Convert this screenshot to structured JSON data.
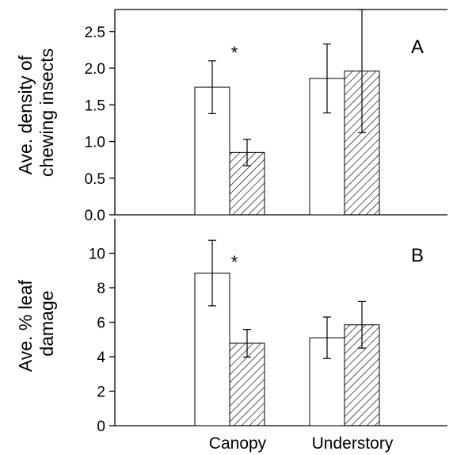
{
  "chart_data": [
    {
      "type": "bar",
      "panel_label": "A",
      "ylabel_lines": [
        "Ave. density of",
        "chewing insects"
      ],
      "xlabel": "",
      "categories": [
        "Canopy",
        "Understory"
      ],
      "series": [
        {
          "values": [
            1.74,
            1.86
          ],
          "errors": [
            0.36,
            0.47
          ],
          "fill": "open"
        },
        {
          "values": [
            0.85,
            1.96
          ],
          "errors": [
            0.18,
            0.84
          ],
          "fill": "hatched"
        }
      ],
      "ylim": [
        0,
        2.8
      ],
      "yticks": [
        "0.0",
        "0.5",
        "1.0",
        "1.5",
        "2.0",
        "2.5"
      ],
      "annotations": [
        {
          "text": "*",
          "category": "Canopy"
        }
      ]
    },
    {
      "type": "bar",
      "panel_label": "B",
      "ylabel_lines": [
        "Ave. % leaf",
        "damage"
      ],
      "xlabel": "",
      "categories": [
        "Canopy",
        "Understory"
      ],
      "series": [
        {
          "values": [
            8.85,
            5.1
          ],
          "errors": [
            1.9,
            1.2
          ],
          "fill": "open"
        },
        {
          "values": [
            4.78,
            5.85
          ],
          "errors": [
            0.8,
            1.35
          ],
          "fill": "hatched"
        }
      ],
      "ylim": [
        0,
        12
      ],
      "yticks": [
        "0",
        "2",
        "4",
        "6",
        "8",
        "10"
      ],
      "annotations": [
        {
          "text": "*",
          "category": "Canopy"
        }
      ]
    }
  ],
  "colors": {
    "axis": "#000000",
    "bar_fill": "#ffffff",
    "hatch": "#000000"
  }
}
